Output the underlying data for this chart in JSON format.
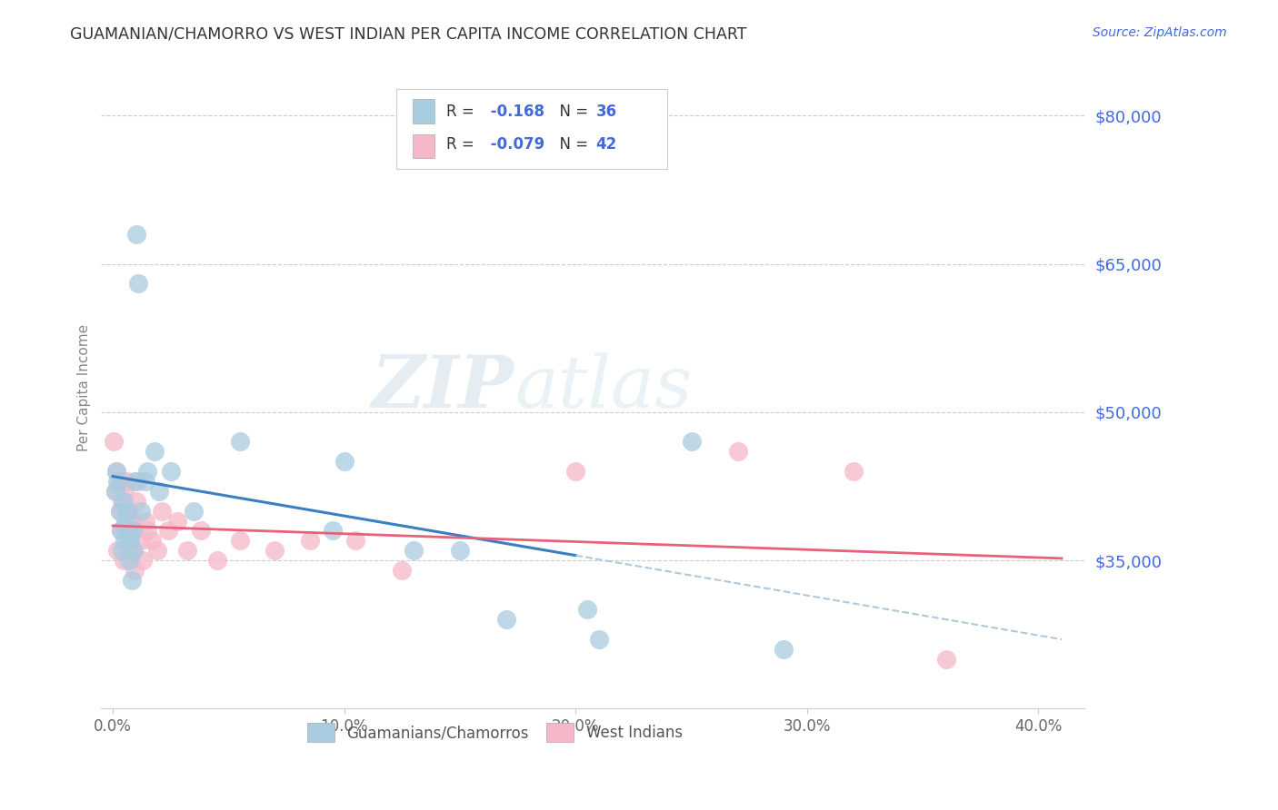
{
  "title": "GUAMANIAN/CHAMORRO VS WEST INDIAN PER CAPITA INCOME CORRELATION CHART",
  "source": "Source: ZipAtlas.com",
  "ylabel": "Per Capita Income",
  "ytick_labels": [
    "$35,000",
    "$50,000",
    "$65,000",
    "$80,000"
  ],
  "ytick_vals": [
    35000,
    50000,
    65000,
    80000
  ],
  "xtick_labels": [
    "0.0%",
    "10.0%",
    "20.0%",
    "30.0%",
    "40.0%"
  ],
  "xtick_vals": [
    0,
    10,
    20,
    30,
    40
  ],
  "ylim": [
    20000,
    85000
  ],
  "xlim": [
    -0.5,
    42.0
  ],
  "watermark_zip": "ZIP",
  "watermark_atlas": "atlas",
  "legend_label1": "Guamanians/Chamorros",
  "legend_label2": "West Indians",
  "blue_scatter_color": "#a8cce0",
  "pink_scatter_color": "#f5b8c8",
  "blue_line_color": "#3a7fc1",
  "pink_line_color": "#e8607a",
  "dash_line_color": "#b0c8d8",
  "axis_label_color": "#4169E1",
  "title_color": "#333333",
  "source_color": "#4169E1",
  "guam_x": [
    0.1,
    0.15,
    0.2,
    0.3,
    0.35,
    0.4,
    0.45,
    0.5,
    0.55,
    0.6,
    0.65,
    0.7,
    0.75,
    0.8,
    0.85,
    0.9,
    0.95,
    1.0,
    1.1,
    1.2,
    1.4,
    1.5,
    1.8,
    2.0,
    2.5,
    3.5,
    5.5,
    10.0,
    13.0,
    15.0,
    17.0,
    21.0,
    25.0,
    9.5,
    20.5,
    29.0
  ],
  "guam_y": [
    42000,
    44000,
    43000,
    40000,
    38000,
    36000,
    41000,
    37000,
    39000,
    40000,
    38000,
    35000,
    37000,
    33000,
    38000,
    36000,
    43000,
    68000,
    63000,
    40000,
    43000,
    44000,
    46000,
    42000,
    44000,
    40000,
    47000,
    45000,
    36000,
    36000,
    29000,
    27000,
    47000,
    38000,
    30000,
    26000
  ],
  "west_x": [
    0.05,
    0.1,
    0.15,
    0.2,
    0.25,
    0.3,
    0.35,
    0.4,
    0.45,
    0.5,
    0.55,
    0.6,
    0.65,
    0.7,
    0.75,
    0.8,
    0.85,
    0.9,
    0.95,
    1.0,
    1.1,
    1.2,
    1.3,
    1.4,
    1.5,
    1.7,
    1.9,
    2.1,
    2.4,
    2.8,
    3.2,
    3.8,
    4.5,
    5.5,
    7.0,
    8.5,
    10.5,
    12.5,
    20.0,
    27.0,
    32.0,
    36.0
  ],
  "west_y": [
    47000,
    42000,
    44000,
    36000,
    43000,
    40000,
    38000,
    41000,
    35000,
    42000,
    38000,
    43000,
    36000,
    40000,
    37000,
    39000,
    36000,
    38000,
    34000,
    41000,
    43000,
    37000,
    35000,
    39000,
    38000,
    37000,
    36000,
    40000,
    38000,
    39000,
    36000,
    38000,
    35000,
    37000,
    36000,
    37000,
    37000,
    34000,
    44000,
    46000,
    44000,
    25000
  ],
  "blue_trend_x0": 0,
  "blue_trend_y0": 43500,
  "blue_trend_x1": 20,
  "blue_trend_y1": 35500,
  "blue_dash_x0": 20,
  "blue_dash_y0": 35500,
  "blue_dash_x1": 41,
  "blue_dash_y1": 27000,
  "pink_trend_x0": 0,
  "pink_trend_y0": 38500,
  "pink_trend_x1": 41,
  "pink_trend_y1": 35200
}
